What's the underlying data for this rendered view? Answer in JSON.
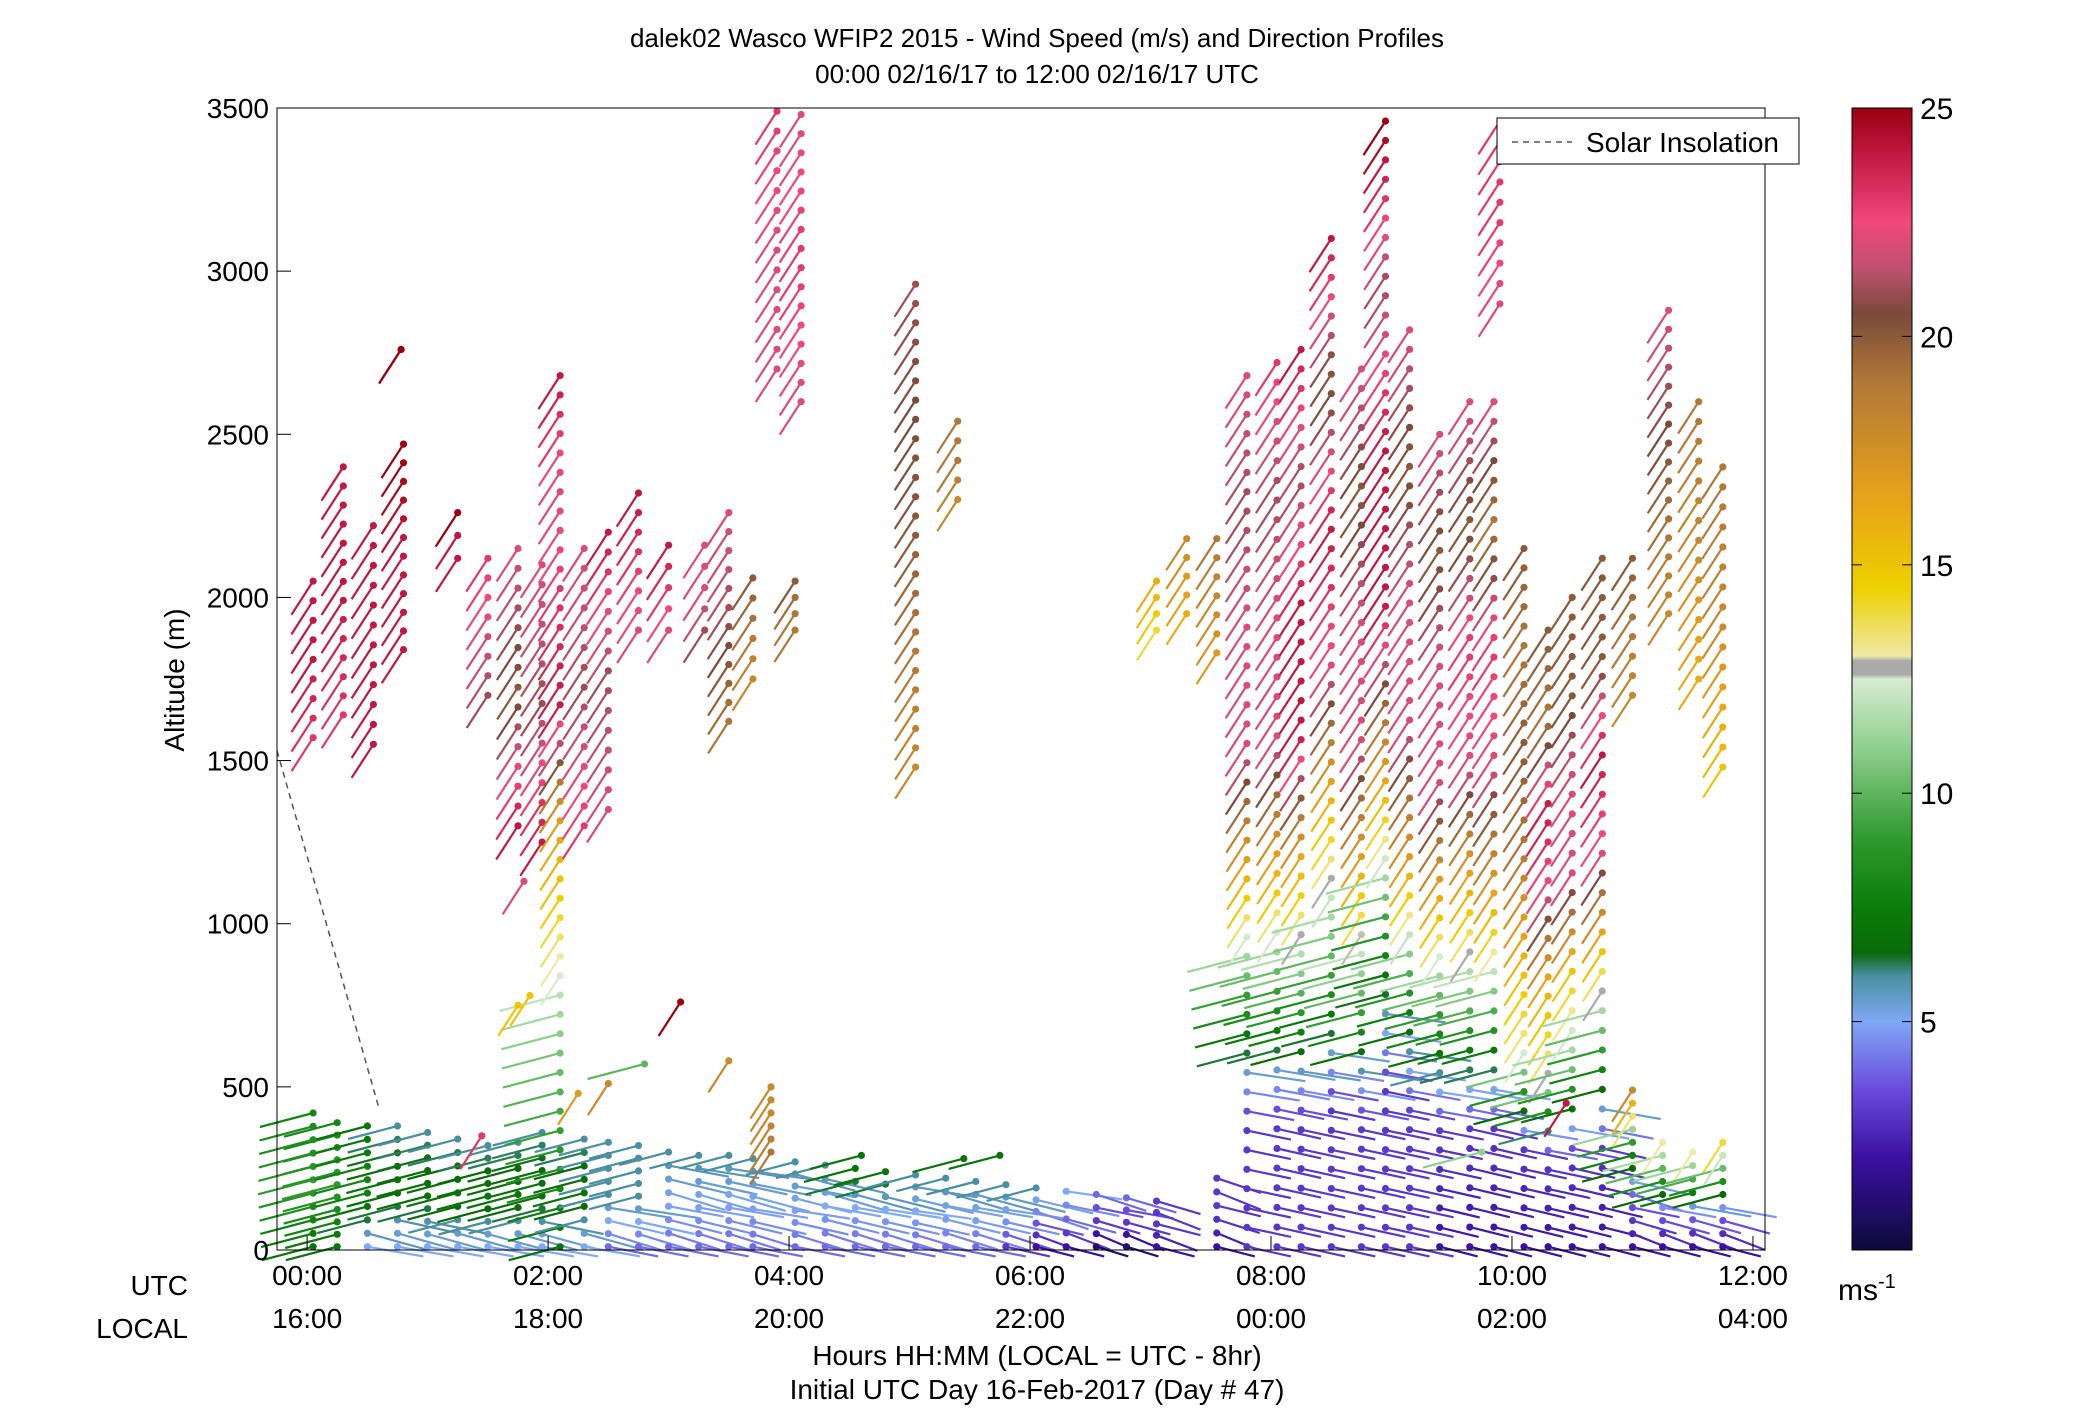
{
  "chart_data": {
    "type": "wind-barb-profile",
    "title": "dalek02 Wasco WFIP2 2015 - Wind Speed (m/s) and Direction Profiles",
    "subtitle": "00:00 02/16/17 to 12:00 02/16/17  UTC",
    "ylabel": "Altitude (m)",
    "xlabel": "Hours HH:MM  (LOCAL = UTC - 8hr)",
    "xlabel2": "Initial UTC Day 16-Feb-2017 (Day # 47)",
    "ylim": [
      0,
      3500
    ],
    "xlim_hours": [
      -0.25,
      12.1
    ],
    "y_ticks": [
      0,
      500,
      1000,
      1500,
      2000,
      2500,
      3000,
      3500
    ],
    "x_ticks": [
      {
        "hour": 0,
        "utc": "00:00",
        "local": "16:00"
      },
      {
        "hour": 2,
        "utc": "02:00",
        "local": "18:00"
      },
      {
        "hour": 4,
        "utc": "04:00",
        "local": "20:00"
      },
      {
        "hour": 6,
        "utc": "06:00",
        "local": "22:00"
      },
      {
        "hour": 8,
        "utc": "08:00",
        "local": "00:00"
      },
      {
        "hour": 10,
        "utc": "10:00",
        "local": "02:00"
      },
      {
        "hour": 12,
        "utc": "12:00",
        "local": "04:00"
      }
    ],
    "row_labels": {
      "utc": "UTC",
      "local": "LOCAL"
    },
    "legend": {
      "label": "Solar Insolation",
      "placement": "top-right"
    },
    "solar_insolation": {
      "x": [
        -0.25,
        0.6
      ],
      "y": [
        1530,
        430
      ]
    },
    "colorbar": {
      "range": [
        0,
        25
      ],
      "ticks": [
        5,
        10,
        15,
        20,
        25
      ],
      "unit": "ms",
      "unit_exp": "-1",
      "stops": [
        {
          "v": 0,
          "c": "#0d0a3c"
        },
        {
          "v": 2,
          "c": "#3a10a0"
        },
        {
          "v": 3.5,
          "c": "#6a4adc"
        },
        {
          "v": 5,
          "c": "#7fa8f5"
        },
        {
          "v": 6,
          "c": "#4a8fa0"
        },
        {
          "v": 6.5,
          "c": "#0a6a0a"
        },
        {
          "v": 7.5,
          "c": "#0a7d0a"
        },
        {
          "v": 9,
          "c": "#2e9a2e"
        },
        {
          "v": 11,
          "c": "#8fcf8f"
        },
        {
          "v": 12.5,
          "c": "#d8ecd0"
        },
        {
          "v": 12.6,
          "c": "#aaaaaa"
        },
        {
          "v": 12.9,
          "c": "#aaaaaa"
        },
        {
          "v": 13.0,
          "c": "#efe9a5"
        },
        {
          "v": 14.5,
          "c": "#eed000"
        },
        {
          "v": 16.5,
          "c": "#e6a21a"
        },
        {
          "v": 19,
          "c": "#b07838"
        },
        {
          "v": 20.5,
          "c": "#7a4a3a"
        },
        {
          "v": 21.5,
          "c": "#c05070"
        },
        {
          "v": 22.5,
          "c": "#f0487a"
        },
        {
          "v": 24,
          "c": "#c01840"
        },
        {
          "v": 25,
          "c": "#9a0010"
        }
      ]
    },
    "profiles": [
      {
        "t": 0.05,
        "lo": 10,
        "hi": 420,
        "sp": [
          7,
          9,
          8
        ]
      },
      {
        "t": 0.05,
        "lo": 1570,
        "hi": 2050,
        "sp": [
          23,
          24,
          24
        ]
      },
      {
        "t": 0.25,
        "lo": 10,
        "hi": 390,
        "sp": [
          7,
          9,
          8
        ]
      },
      {
        "t": 0.3,
        "lo": 1640,
        "hi": 2400,
        "sp": [
          23,
          24,
          24
        ]
      },
      {
        "t": 0.5,
        "lo": 10,
        "hi": 380,
        "sp": [
          5,
          8,
          7
        ]
      },
      {
        "t": 0.55,
        "lo": 1550,
        "hi": 2220,
        "sp": [
          24,
          24,
          24
        ]
      },
      {
        "t": 0.75,
        "lo": 10,
        "hi": 380,
        "sp": [
          5,
          7,
          6
        ]
      },
      {
        "t": 0.8,
        "lo": 1840,
        "hi": 2470,
        "sp": [
          24,
          24,
          25
        ]
      },
      {
        "t": 0.78,
        "lo": 2760,
        "hi": 2760,
        "sp": [
          25,
          25,
          25
        ]
      },
      {
        "t": 1.0,
        "lo": 10,
        "hi": 360,
        "sp": [
          5,
          7,
          6
        ]
      },
      {
        "t": 1.25,
        "lo": 10,
        "hi": 340,
        "sp": [
          5,
          7,
          6
        ]
      },
      {
        "t": 1.25,
        "lo": 2120,
        "hi": 2260,
        "sp": [
          24,
          24,
          25
        ]
      },
      {
        "t": 1.5,
        "lo": 10,
        "hi": 320,
        "sp": [
          5,
          7,
          6
        ]
      },
      {
        "t": 1.5,
        "lo": 1700,
        "hi": 2120,
        "sp": [
          21,
          22,
          23
        ]
      },
      {
        "t": 1.75,
        "lo": 10,
        "hi": 330,
        "sp": [
          5,
          7,
          6
        ]
      },
      {
        "t": 1.75,
        "lo": 1300,
        "hi": 2150,
        "sp": [
          24,
          20,
          22
        ]
      },
      {
        "t": 1.95,
        "lo": 10,
        "hi": 360,
        "sp": [
          5,
          7,
          6
        ]
      },
      {
        "t": 1.95,
        "lo": 1250,
        "hi": 2100,
        "sp": [
          24,
          21,
          22
        ]
      },
      {
        "t": 2.1,
        "lo": 10,
        "hi": 2680,
        "sp": [
          7,
          9,
          11,
          14,
          17,
          24,
          23,
          22,
          24
        ]
      },
      {
        "t": 2.3,
        "lo": 10,
        "hi": 340,
        "sp": [
          5,
          7,
          6
        ]
      },
      {
        "t": 2.3,
        "lo": 1300,
        "hi": 2150,
        "sp": [
          23,
          21,
          22
        ]
      },
      {
        "t": 2.5,
        "lo": 10,
        "hi": 330,
        "sp": [
          4,
          6,
          6
        ]
      },
      {
        "t": 2.5,
        "lo": 1350,
        "hi": 2200,
        "sp": [
          22,
          21,
          24
        ]
      },
      {
        "t": 2.75,
        "lo": 10,
        "hi": 320,
        "sp": [
          4,
          6,
          6
        ]
      },
      {
        "t": 2.75,
        "lo": 1900,
        "hi": 2320,
        "sp": [
          22,
          23,
          24
        ]
      },
      {
        "t": 3.0,
        "lo": 10,
        "hi": 300,
        "sp": [
          4,
          5,
          6
        ]
      },
      {
        "t": 3.0,
        "lo": 1900,
        "hi": 2160,
        "sp": [
          22,
          23,
          24
        ]
      },
      {
        "t": 3.25,
        "lo": 10,
        "hi": 290,
        "sp": [
          4,
          5,
          6
        ]
      },
      {
        "t": 3.3,
        "lo": 1900,
        "hi": 2160,
        "sp": [
          21,
          22,
          22
        ]
      },
      {
        "t": 3.5,
        "lo": 10,
        "hi": 290,
        "sp": [
          4,
          5,
          6
        ]
      },
      {
        "t": 3.5,
        "lo": 1620,
        "hi": 2260,
        "sp": [
          19,
          21,
          22
        ]
      },
      {
        "t": 3.7,
        "lo": 10,
        "hi": 280,
        "sp": [
          4,
          5,
          6
        ]
      },
      {
        "t": 3.7,
        "lo": 1750,
        "hi": 2060,
        "sp": [
          18,
          19,
          20
        ]
      },
      {
        "t": 3.85,
        "lo": 300,
        "hi": 500,
        "sp": [
          19,
          18,
          18
        ]
      },
      {
        "t": 3.9,
        "lo": 2700,
        "hi": 3490,
        "sp": [
          22,
          22,
          23
        ]
      },
      {
        "t": 4.05,
        "lo": 10,
        "hi": 270,
        "sp": [
          4,
          5,
          6
        ]
      },
      {
        "t": 4.05,
        "lo": 1900,
        "hi": 2050,
        "sp": [
          19,
          19,
          20
        ]
      },
      {
        "t": 4.1,
        "lo": 2600,
        "hi": 3480,
        "sp": [
          22,
          23,
          22
        ]
      },
      {
        "t": 4.3,
        "lo": 10,
        "hi": 260,
        "sp": [
          4,
          5,
          6
        ]
      },
      {
        "t": 4.55,
        "lo": 10,
        "hi": 250,
        "sp": [
          4,
          5,
          7
        ]
      },
      {
        "t": 4.8,
        "lo": 10,
        "hi": 240,
        "sp": [
          4,
          5,
          7
        ]
      },
      {
        "t": 5.05,
        "lo": 10,
        "hi": 230,
        "sp": [
          4,
          5,
          6
        ]
      },
      {
        "t": 5.05,
        "lo": 1480,
        "hi": 2960,
        "sp": [
          18,
          20,
          21
        ]
      },
      {
        "t": 5.3,
        "lo": 10,
        "hi": 220,
        "sp": [
          4,
          5,
          6
        ]
      },
      {
        "t": 5.4,
        "lo": 2300,
        "hi": 2540,
        "sp": [
          18,
          19,
          19
        ]
      },
      {
        "t": 5.55,
        "lo": 10,
        "hi": 210,
        "sp": [
          4,
          5,
          6
        ]
      },
      {
        "t": 5.8,
        "lo": 10,
        "hi": 200,
        "sp": [
          3,
          5,
          6
        ]
      },
      {
        "t": 6.05,
        "lo": 10,
        "hi": 190,
        "sp": [
          2,
          4,
          6
        ]
      },
      {
        "t": 6.3,
        "lo": 10,
        "hi": 180,
        "sp": [
          2,
          4,
          5
        ]
      },
      {
        "t": 6.55,
        "lo": 10,
        "hi": 170,
        "sp": [
          1,
          3,
          4
        ]
      },
      {
        "t": 6.8,
        "lo": 10,
        "hi": 160,
        "sp": [
          1,
          3,
          4
        ]
      },
      {
        "t": 7.05,
        "lo": 10,
        "hi": 150,
        "sp": [
          2,
          3,
          3
        ]
      },
      {
        "t": 7.05,
        "lo": 1900,
        "hi": 2050,
        "sp": [
          14,
          15,
          16
        ]
      },
      {
        "t": 7.3,
        "lo": 1950,
        "hi": 2180,
        "sp": [
          16,
          17,
          18
        ]
      },
      {
        "t": 7.55,
        "lo": 10,
        "hi": 220,
        "sp": [
          2,
          3,
          3
        ]
      },
      {
        "t": 7.55,
        "lo": 1830,
        "hi": 2180,
        "sp": [
          17,
          18,
          19
        ]
      },
      {
        "t": 7.8,
        "lo": 10,
        "hi": 2680,
        "sp": [
          3,
          3,
          9,
          16,
          22,
          22,
          21,
          22
        ]
      },
      {
        "t": 8.05,
        "lo": 10,
        "hi": 2720,
        "sp": [
          3,
          3,
          9,
          16,
          22,
          22,
          21,
          23
        ]
      },
      {
        "t": 8.25,
        "lo": 10,
        "hi": 2760,
        "sp": [
          3,
          3,
          10,
          16,
          24,
          24,
          21,
          24
        ]
      },
      {
        "t": 8.5,
        "lo": 10,
        "hi": 3100,
        "sp": [
          3,
          3,
          10,
          15,
          22,
          24,
          20,
          24
        ]
      },
      {
        "t": 8.75,
        "lo": 10,
        "hi": 2700,
        "sp": [
          3,
          3,
          10,
          16,
          22,
          22,
          20,
          22
        ]
      },
      {
        "t": 8.95,
        "lo": 10,
        "hi": 3460,
        "sp": [
          3,
          3,
          9,
          17,
          24,
          24,
          21,
          25
        ]
      },
      {
        "t": 9.15,
        "lo": 10,
        "hi": 2820,
        "sp": [
          3,
          3,
          9,
          17,
          22,
          22,
          20,
          22
        ]
      },
      {
        "t": 9.4,
        "lo": 10,
        "hi": 2500,
        "sp": [
          2,
          3,
          9,
          16,
          22,
          22,
          20,
          22
        ]
      },
      {
        "t": 9.65,
        "lo": 10,
        "hi": 2600,
        "sp": [
          2,
          3,
          10,
          16,
          22,
          23,
          20,
          22
        ]
      },
      {
        "t": 9.85,
        "lo": 10,
        "hi": 2600,
        "sp": [
          2,
          3,
          10,
          17,
          22,
          23,
          19,
          22
        ]
      },
      {
        "t": 9.9,
        "lo": 2900,
        "hi": 3460,
        "sp": [
          22,
          23,
          23
        ]
      },
      {
        "t": 10.1,
        "lo": 10,
        "hi": 2150,
        "sp": [
          2,
          3,
          13,
          16,
          19,
          20,
          19,
          20
        ]
      },
      {
        "t": 10.3,
        "lo": 10,
        "hi": 1900,
        "sp": [
          2,
          3,
          13,
          16,
          22,
          24,
          19,
          20
        ]
      },
      {
        "t": 10.5,
        "lo": 10,
        "hi": 2000,
        "sp": [
          2,
          3,
          11,
          15,
          22,
          22,
          20,
          20
        ]
      },
      {
        "t": 10.75,
        "lo": 10,
        "hi": 2120,
        "sp": [
          2,
          3,
          9,
          15,
          22,
          24,
          20,
          20
        ]
      },
      {
        "t": 11.0,
        "lo": 10,
        "hi": 490,
        "sp": [
          2,
          4,
          9,
          18
        ]
      },
      {
        "t": 11.0,
        "lo": 1700,
        "hi": 2120,
        "sp": [
          18,
          19,
          20
        ]
      },
      {
        "t": 11.25,
        "lo": 10,
        "hi": 330,
        "sp": [
          2,
          4,
          9,
          13
        ]
      },
      {
        "t": 11.3,
        "lo": 1950,
        "hi": 2880,
        "sp": [
          18,
          20,
          22
        ]
      },
      {
        "t": 11.5,
        "lo": 10,
        "hi": 300,
        "sp": [
          2,
          4,
          9,
          13
        ]
      },
      {
        "t": 11.55,
        "lo": 1750,
        "hi": 2600,
        "sp": [
          16,
          18,
          19
        ]
      },
      {
        "t": 11.75,
        "lo": 10,
        "hi": 330,
        "sp": [
          2,
          4,
          9,
          14
        ]
      },
      {
        "t": 11.75,
        "lo": 1480,
        "hi": 2400,
        "sp": [
          15,
          18,
          19
        ]
      }
    ],
    "scattered_barbs": [
      {
        "t": 1.8,
        "h": 1130,
        "s": 22
      },
      {
        "t": 1.75,
        "h": 750,
        "s": 15
      },
      {
        "t": 1.85,
        "h": 780,
        "s": 15
      },
      {
        "t": 3.1,
        "h": 760,
        "s": 25
      },
      {
        "t": 2.8,
        "h": 570,
        "s": 10
      },
      {
        "t": 2.5,
        "h": 510,
        "s": 18
      },
      {
        "t": 2.25,
        "h": 480,
        "s": 17
      },
      {
        "t": 1.45,
        "h": 350,
        "s": 23
      },
      {
        "t": 3.5,
        "h": 580,
        "s": 18
      },
      {
        "t": 5.45,
        "h": 280,
        "s": 7
      },
      {
        "t": 5.75,
        "h": 290,
        "s": 7
      },
      {
        "t": 4.6,
        "h": 290,
        "s": 7
      },
      {
        "t": 10.45,
        "h": 450,
        "s": 24
      },
      {
        "t": 9.75,
        "h": 300,
        "s": 11
      }
    ]
  }
}
